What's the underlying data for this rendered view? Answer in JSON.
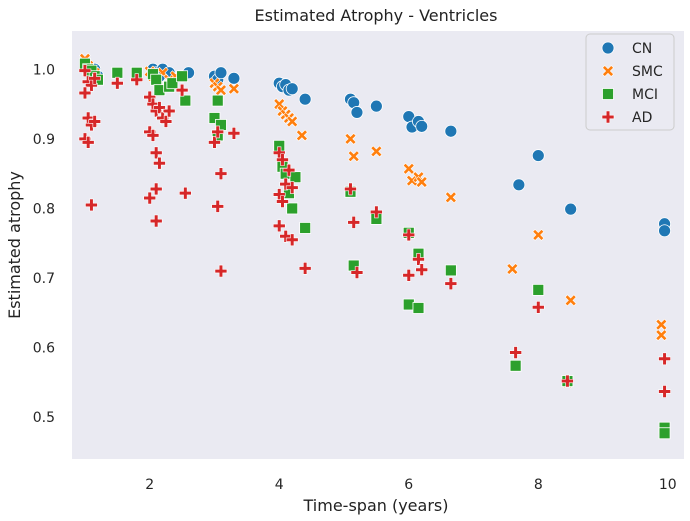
{
  "chart_data": {
    "type": "scatter",
    "title": "Estimated Atrophy - Ventricles",
    "xlabel": "Time-span (years)",
    "ylabel": "Estimated atrophy",
    "xlim": [
      0.8,
      10.25
    ],
    "ylim": [
      0.44,
      1.055
    ],
    "xticks": [
      2,
      4,
      6,
      8,
      10
    ],
    "yticks": [
      0.5,
      0.6,
      0.7,
      0.8,
      0.9,
      1.0
    ],
    "grid": false,
    "legend_position": "top-right",
    "series": [
      {
        "name": "CN",
        "marker": "circle",
        "color": "#1f77b4",
        "points": [
          [
            1.05,
            1.0
          ],
          [
            1.1,
            0.995
          ],
          [
            1.15,
            1.0
          ],
          [
            1.2,
            0.99
          ],
          [
            2.05,
            1.0
          ],
          [
            2.1,
            0.995
          ],
          [
            2.15,
            0.99
          ],
          [
            2.2,
            1.0
          ],
          [
            2.3,
            0.995
          ],
          [
            2.5,
            0.99
          ],
          [
            2.6,
            0.995
          ],
          [
            3.0,
            0.99
          ],
          [
            3.05,
            0.985
          ],
          [
            3.1,
            0.995
          ],
          [
            3.3,
            0.987
          ],
          [
            4.0,
            0.98
          ],
          [
            4.05,
            0.975
          ],
          [
            4.1,
            0.978
          ],
          [
            4.15,
            0.97
          ],
          [
            4.2,
            0.972
          ],
          [
            4.4,
            0.957
          ],
          [
            5.1,
            0.957
          ],
          [
            5.15,
            0.952
          ],
          [
            5.2,
            0.938
          ],
          [
            5.5,
            0.947
          ],
          [
            6.0,
            0.932
          ],
          [
            6.05,
            0.917
          ],
          [
            6.15,
            0.925
          ],
          [
            6.2,
            0.918
          ],
          [
            6.65,
            0.911
          ],
          [
            7.7,
            0.834
          ],
          [
            8.0,
            0.876
          ],
          [
            8.5,
            0.799
          ],
          [
            9.95,
            0.778
          ],
          [
            9.95,
            0.768
          ]
        ]
      },
      {
        "name": "SMC",
        "marker": "x",
        "color": "#ff7f0e",
        "points": [
          [
            1.0,
            1.015
          ],
          [
            1.05,
            1.005
          ],
          [
            1.1,
            0.99
          ],
          [
            1.15,
            0.995
          ],
          [
            2.0,
            0.997
          ],
          [
            2.05,
            0.99
          ],
          [
            2.1,
            0.985
          ],
          [
            2.2,
            0.995
          ],
          [
            2.3,
            0.985
          ],
          [
            2.4,
            0.99
          ],
          [
            3.0,
            0.98
          ],
          [
            3.05,
            0.975
          ],
          [
            3.1,
            0.97
          ],
          [
            3.3,
            0.972
          ],
          [
            4.0,
            0.95
          ],
          [
            4.05,
            0.94
          ],
          [
            4.1,
            0.935
          ],
          [
            4.15,
            0.93
          ],
          [
            4.2,
            0.925
          ],
          [
            4.35,
            0.905
          ],
          [
            5.1,
            0.9
          ],
          [
            5.15,
            0.875
          ],
          [
            5.5,
            0.882
          ],
          [
            6.0,
            0.857
          ],
          [
            6.05,
            0.84
          ],
          [
            6.15,
            0.845
          ],
          [
            6.2,
            0.838
          ],
          [
            6.65,
            0.816
          ],
          [
            7.6,
            0.713
          ],
          [
            8.0,
            0.762
          ],
          [
            8.5,
            0.668
          ],
          [
            8.45,
            0.55
          ],
          [
            9.9,
            0.633
          ],
          [
            9.9,
            0.618
          ]
        ]
      },
      {
        "name": "MCI",
        "marker": "square",
        "color": "#2ca02c",
        "points": [
          [
            1.0,
            1.008
          ],
          [
            1.05,
            1.0
          ],
          [
            1.1,
            0.998
          ],
          [
            1.15,
            0.99
          ],
          [
            1.2,
            0.985
          ],
          [
            1.5,
            0.995
          ],
          [
            1.8,
            0.995
          ],
          [
            2.05,
            0.993
          ],
          [
            2.1,
            0.985
          ],
          [
            2.15,
            0.97
          ],
          [
            2.3,
            0.975
          ],
          [
            2.35,
            0.98
          ],
          [
            2.5,
            0.99
          ],
          [
            2.55,
            0.955
          ],
          [
            3.0,
            0.93
          ],
          [
            3.05,
            0.955
          ],
          [
            3.1,
            0.92
          ],
          [
            3.05,
            0.905
          ],
          [
            4.0,
            0.89
          ],
          [
            4.05,
            0.86
          ],
          [
            4.1,
            0.85
          ],
          [
            4.15,
            0.822
          ],
          [
            4.2,
            0.8
          ],
          [
            4.25,
            0.845
          ],
          [
            4.4,
            0.772
          ],
          [
            5.1,
            0.824
          ],
          [
            5.15,
            0.718
          ],
          [
            5.5,
            0.785
          ],
          [
            6.0,
            0.765
          ],
          [
            6.0,
            0.662
          ],
          [
            6.15,
            0.735
          ],
          [
            6.15,
            0.657
          ],
          [
            6.65,
            0.711
          ],
          [
            7.65,
            0.574
          ],
          [
            8.0,
            0.683
          ],
          [
            8.45,
            0.552
          ],
          [
            9.95,
            0.485
          ],
          [
            9.95,
            0.477
          ]
        ]
      },
      {
        "name": "AD",
        "marker": "plus",
        "color": "#d62728",
        "points": [
          [
            1.0,
            0.998
          ],
          [
            1.05,
            0.982
          ],
          [
            1.1,
            0.977
          ],
          [
            1.15,
            0.987
          ],
          [
            1.0,
            0.966
          ],
          [
            1.05,
            0.93
          ],
          [
            1.1,
            0.92
          ],
          [
            1.15,
            0.925
          ],
          [
            1.0,
            0.9
          ],
          [
            1.05,
            0.895
          ],
          [
            1.1,
            0.805
          ],
          [
            1.5,
            0.98
          ],
          [
            1.8,
            0.985
          ],
          [
            2.0,
            0.96
          ],
          [
            2.05,
            0.95
          ],
          [
            2.1,
            0.94
          ],
          [
            2.15,
            0.945
          ],
          [
            2.2,
            0.93
          ],
          [
            2.25,
            0.925
          ],
          [
            2.3,
            0.94
          ],
          [
            2.0,
            0.91
          ],
          [
            2.05,
            0.905
          ],
          [
            2.1,
            0.88
          ],
          [
            2.15,
            0.865
          ],
          [
            2.0,
            0.815
          ],
          [
            2.1,
            0.828
          ],
          [
            2.1,
            0.782
          ],
          [
            2.5,
            0.97
          ],
          [
            2.55,
            0.822
          ],
          [
            3.0,
            0.895
          ],
          [
            3.05,
            0.91
          ],
          [
            3.1,
            0.85
          ],
          [
            3.05,
            0.803
          ],
          [
            3.1,
            0.71
          ],
          [
            3.3,
            0.908
          ],
          [
            4.0,
            0.88
          ],
          [
            4.05,
            0.87
          ],
          [
            4.1,
            0.835
          ],
          [
            4.0,
            0.82
          ],
          [
            4.05,
            0.81
          ],
          [
            4.15,
            0.855
          ],
          [
            4.2,
            0.83
          ],
          [
            4.0,
            0.775
          ],
          [
            4.1,
            0.76
          ],
          [
            4.2,
            0.755
          ],
          [
            4.4,
            0.714
          ],
          [
            5.1,
            0.828
          ],
          [
            5.15,
            0.78
          ],
          [
            5.2,
            0.708
          ],
          [
            5.5,
            0.795
          ],
          [
            6.0,
            0.762
          ],
          [
            6.0,
            0.704
          ],
          [
            6.15,
            0.727
          ],
          [
            6.2,
            0.712
          ],
          [
            6.65,
            0.692
          ],
          [
            7.65,
            0.593
          ],
          [
            8.0,
            0.658
          ],
          [
            8.45,
            0.552
          ],
          [
            9.95,
            0.584
          ],
          [
            9.95,
            0.537
          ]
        ]
      }
    ]
  }
}
